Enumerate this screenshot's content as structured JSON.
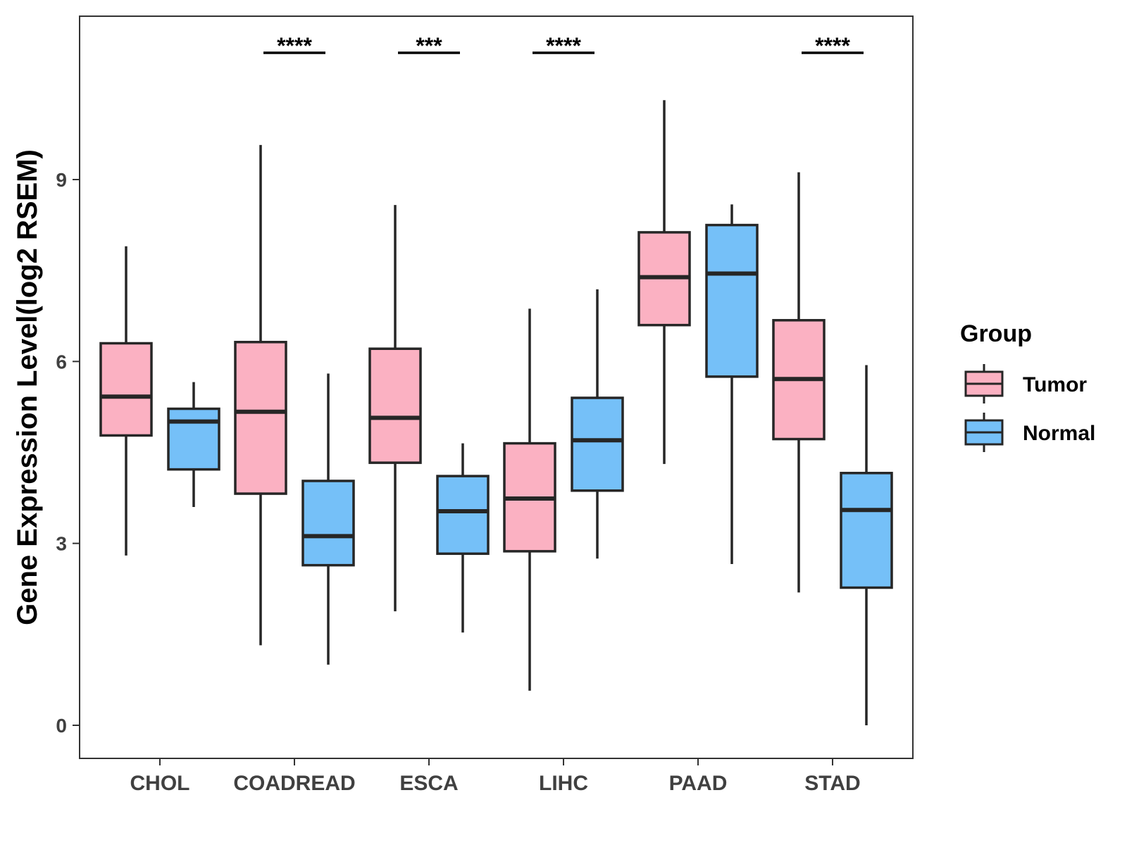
{
  "chart_data": {
    "type": "box",
    "title": "",
    "xlabel": "",
    "ylabel": "Gene Expression Level(log2 RSEM)",
    "ylim": [
      -0.55,
      11.7
    ],
    "yticks": [
      0,
      3,
      6,
      9
    ],
    "grid": false,
    "legend_position": "right",
    "legend_title": "Group",
    "groups": [
      {
        "name": "Tumor",
        "color": "#FBB1C2"
      },
      {
        "name": "Normal",
        "color": "#75C0F8"
      }
    ],
    "categories": [
      "CHOL",
      "COADREAD",
      "ESCA",
      "LIHC",
      "PAAD",
      "STAD"
    ],
    "series": [
      {
        "name": "Tumor",
        "boxes": [
          {
            "min": 2.8,
            "q1": 4.78,
            "median": 5.42,
            "q3": 6.3,
            "max": 7.9
          },
          {
            "min": 1.32,
            "q1": 3.82,
            "median": 5.17,
            "q3": 6.32,
            "max": 9.57
          },
          {
            "min": 1.88,
            "q1": 4.33,
            "median": 5.07,
            "q3": 6.21,
            "max": 8.58
          },
          {
            "min": 0.57,
            "q1": 2.87,
            "median": 3.74,
            "q3": 4.65,
            "max": 6.87
          },
          {
            "min": 4.31,
            "q1": 6.6,
            "median": 7.39,
            "q3": 8.13,
            "max": 10.31
          },
          {
            "min": 2.19,
            "q1": 4.72,
            "median": 5.71,
            "q3": 6.68,
            "max": 9.12
          }
        ]
      },
      {
        "name": "Normal",
        "boxes": [
          {
            "min": 3.6,
            "q1": 4.22,
            "median": 5.01,
            "q3": 5.22,
            "max": 5.66
          },
          {
            "min": 1.0,
            "q1": 2.64,
            "median": 3.12,
            "q3": 4.03,
            "max": 5.8
          },
          {
            "min": 1.53,
            "q1": 2.83,
            "median": 3.53,
            "q3": 4.11,
            "max": 4.65
          },
          {
            "min": 2.75,
            "q1": 3.87,
            "median": 4.7,
            "q3": 5.4,
            "max": 7.19
          },
          {
            "min": 2.66,
            "q1": 5.75,
            "median": 7.45,
            "q3": 8.25,
            "max": 8.59
          },
          {
            "min": 0.0,
            "q1": 2.27,
            "median": 3.55,
            "q3": 4.16,
            "max": 5.94
          }
        ]
      }
    ],
    "significance": [
      "",
      "****",
      "***",
      "****",
      "",
      "****"
    ]
  }
}
